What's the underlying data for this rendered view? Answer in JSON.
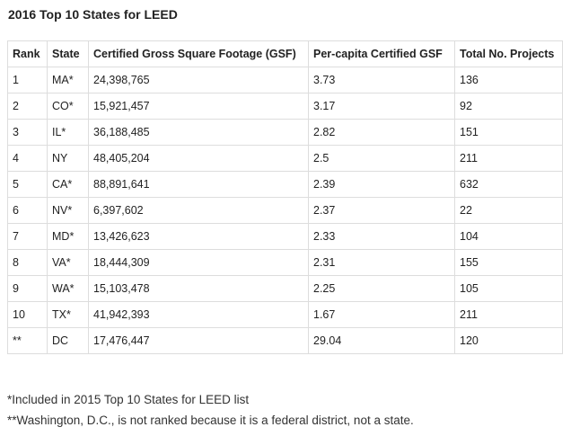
{
  "title": "2016 Top 10 States for LEED",
  "table": {
    "headers": [
      "Rank",
      "State",
      "Certified Gross Square Footage (GSF)",
      "Per-capita Certified GSF",
      "Total No. Projects"
    ],
    "rows": [
      [
        "1",
        "MA*",
        "24,398,765",
        "3.73",
        "136"
      ],
      [
        "2",
        "CO*",
        "15,921,457",
        "3.17",
        "92"
      ],
      [
        "3",
        "IL*",
        "36,188,485",
        "2.82",
        "151"
      ],
      [
        "4",
        "NY",
        "48,405,204",
        "2.5",
        "211"
      ],
      [
        "5",
        "CA*",
        "88,891,641",
        "2.39",
        "632"
      ],
      [
        "6",
        "NV*",
        "6,397,602",
        "2.37",
        "22"
      ],
      [
        "7",
        "MD*",
        "13,426,623",
        "2.33",
        "104"
      ],
      [
        "8",
        "VA*",
        "18,444,309",
        "2.31",
        "155"
      ],
      [
        "9",
        "WA*",
        "15,103,478",
        "2.25",
        "105"
      ],
      [
        "10",
        "TX*",
        "41,942,393",
        "1.67",
        "211"
      ],
      [
        "**",
        "DC",
        "17,476,447",
        "29.04",
        "120"
      ]
    ]
  },
  "footnotes": [
    "*Included in 2015 Top 10 States for LEED list",
    "**Washington, D.C., is not ranked because it is a federal district, not a state."
  ]
}
